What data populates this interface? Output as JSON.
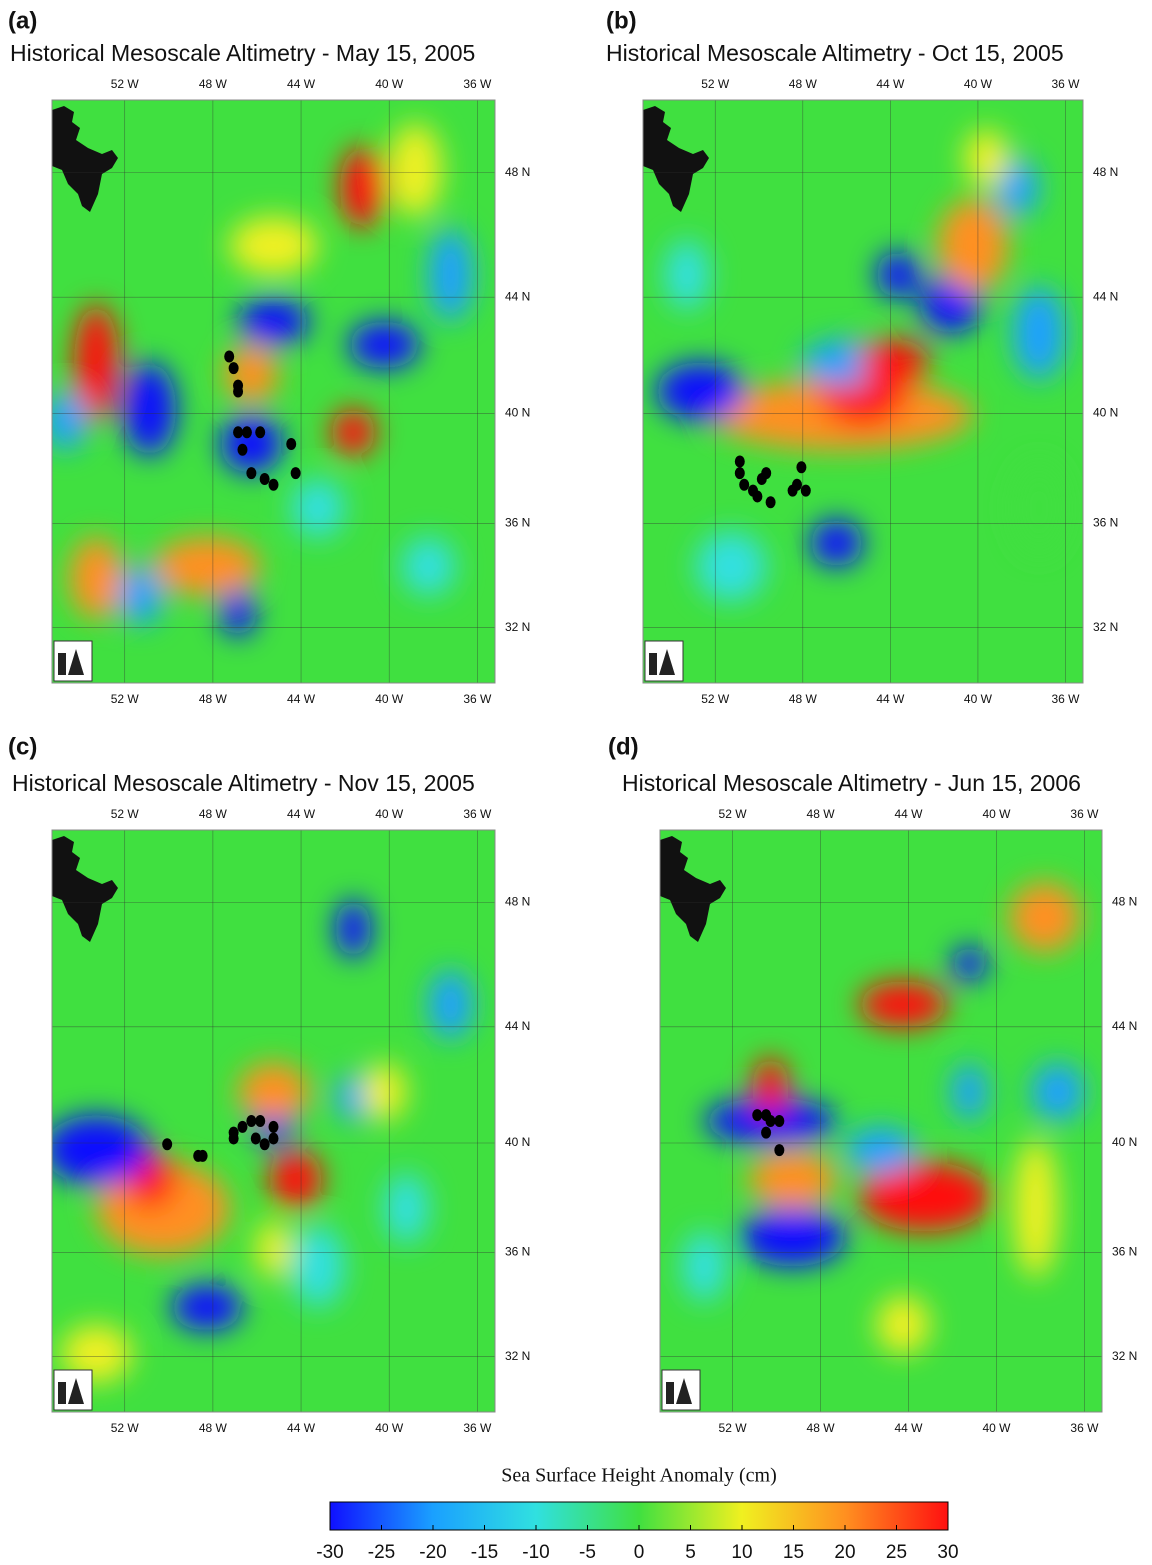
{
  "chart_data": [
    {
      "type": "heatmap",
      "label": "(a)",
      "title": "Historical Mesoscale Altimetry - May 15, 2005",
      "xlim": [
        -55.3,
        -35.2
      ],
      "ylim": [
        29.8,
        50.2
      ],
      "xticks": [
        {
          "value": -52,
          "label": "52 W"
        },
        {
          "value": -48,
          "label": "48 W"
        },
        {
          "value": -44,
          "label": "44 W"
        },
        {
          "value": -40,
          "label": "40 W"
        },
        {
          "value": -36,
          "label": "36 W"
        }
      ],
      "yticks": [
        {
          "value": 48,
          "label": "48 N"
        },
        {
          "value": 44,
          "label": "44 N"
        },
        {
          "value": 40,
          "label": "40 N"
        },
        {
          "value": 36,
          "label": "36 N"
        },
        {
          "value": 32,
          "label": "32 N"
        }
      ]
    },
    {
      "type": "heatmap",
      "label": "(b)",
      "title": "Historical Mesoscale Altimetry - Oct 15, 2005",
      "xlim": [
        -55.3,
        -35.2
      ],
      "ylim": [
        29.8,
        50.2
      ],
      "xticks": [
        {
          "value": -52,
          "label": "52 W"
        },
        {
          "value": -48,
          "label": "48 W"
        },
        {
          "value": -44,
          "label": "44 W"
        },
        {
          "value": -40,
          "label": "40 W"
        },
        {
          "value": -36,
          "label": "36 W"
        }
      ],
      "yticks": [
        {
          "value": 48,
          "label": "48 N"
        },
        {
          "value": 44,
          "label": "44 N"
        },
        {
          "value": 40,
          "label": "40 N"
        },
        {
          "value": 36,
          "label": "36 N"
        },
        {
          "value": 32,
          "label": "32 N"
        }
      ]
    },
    {
      "type": "heatmap",
      "label": "(c)",
      "title": "Historical Mesoscale Altimetry - Nov 15, 2005",
      "xlim": [
        -55.3,
        -35.2
      ],
      "ylim": [
        29.8,
        50.2
      ],
      "xticks": [
        {
          "value": -52,
          "label": "52 W"
        },
        {
          "value": -48,
          "label": "48 W"
        },
        {
          "value": -44,
          "label": "44 W"
        },
        {
          "value": -40,
          "label": "40 W"
        },
        {
          "value": -36,
          "label": "36 W"
        }
      ],
      "yticks": [
        {
          "value": 48,
          "label": "48 N"
        },
        {
          "value": 44,
          "label": "44 N"
        },
        {
          "value": 40,
          "label": "40 N"
        },
        {
          "value": 36,
          "label": "36 N"
        },
        {
          "value": 32,
          "label": "32 N"
        }
      ]
    },
    {
      "type": "heatmap",
      "label": "(d)",
      "title": "Historical Mesoscale Altimetry - Jun 15, 2006",
      "xlim": [
        -55.3,
        -35.2
      ],
      "ylim": [
        29.8,
        50.2
      ],
      "xticks": [
        {
          "value": -52,
          "label": "52 W"
        },
        {
          "value": -48,
          "label": "48 W"
        },
        {
          "value": -44,
          "label": "44 W"
        },
        {
          "value": -40,
          "label": "40 W"
        },
        {
          "value": -36,
          "label": "36 W"
        }
      ],
      "yticks": [
        {
          "value": 48,
          "label": "48 N"
        },
        {
          "value": 44,
          "label": "44 N"
        },
        {
          "value": 40,
          "label": "40 N"
        },
        {
          "value": 36,
          "label": "36 N"
        },
        {
          "value": 32,
          "label": "32 N"
        }
      ]
    }
  ],
  "colorbar": {
    "title": "Sea Surface Height Anomaly (cm)",
    "lim": [
      -30,
      30
    ],
    "ticks": [
      -30,
      -25,
      -20,
      -15,
      -10,
      -5,
      0,
      5,
      10,
      15,
      20,
      25,
      30
    ],
    "colors": [
      "#1010ff",
      "#1aa0ff",
      "#30e0e0",
      "#40e040",
      "#f0f020",
      "#ff9020",
      "#ff1010"
    ]
  }
}
